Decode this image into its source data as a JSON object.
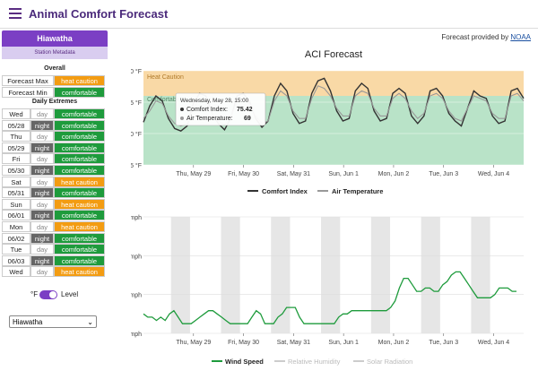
{
  "app": {
    "title": "Animal Comfort Forecast"
  },
  "provider": {
    "text": "Forecast provided by",
    "link": "NOAA"
  },
  "station": {
    "name": "Hiawatha",
    "meta": "Station Metadata"
  },
  "overall": {
    "title": "Overall",
    "rows": [
      {
        "label": "Forecast Max",
        "value": "heat caution",
        "status": "hot"
      },
      {
        "label": "Forecast Min",
        "value": "comfortable",
        "status": "ok"
      }
    ]
  },
  "daily": {
    "title": "Daily Extremes",
    "rows": [
      {
        "label": "Wed",
        "period": "day",
        "value": "comfortable",
        "status": "ok"
      },
      {
        "label": "05/28",
        "period": "night",
        "value": "comfortable",
        "status": "ok"
      },
      {
        "label": "Thu",
        "period": "day",
        "value": "comfortable",
        "status": "ok"
      },
      {
        "label": "05/29",
        "period": "night",
        "value": "comfortable",
        "status": "ok"
      },
      {
        "label": "Fri",
        "period": "day",
        "value": "comfortable",
        "status": "ok"
      },
      {
        "label": "05/30",
        "period": "night",
        "value": "comfortable",
        "status": "ok"
      },
      {
        "label": "Sat",
        "period": "day",
        "value": "heat caution",
        "status": "hot"
      },
      {
        "label": "05/31",
        "period": "night",
        "value": "comfortable",
        "status": "ok"
      },
      {
        "label": "Sun",
        "period": "day",
        "value": "heat caution",
        "status": "hot"
      },
      {
        "label": "06/01",
        "period": "night",
        "value": "comfortable",
        "status": "ok"
      },
      {
        "label": "Mon",
        "period": "day",
        "value": "heat caution",
        "status": "hot"
      },
      {
        "label": "06/02",
        "period": "night",
        "value": "comfortable",
        "status": "ok"
      },
      {
        "label": "Tue",
        "period": "day",
        "value": "comfortable",
        "status": "ok"
      },
      {
        "label": "06/03",
        "period": "night",
        "value": "comfortable",
        "status": "ok"
      },
      {
        "label": "Wed",
        "period": "day",
        "value": "heat caution",
        "status": "hot"
      }
    ]
  },
  "controls": {
    "unit": "°F",
    "level": "Level",
    "station_select": "Hiawatha"
  },
  "chart_data": [
    {
      "type": "line",
      "title": "ACI Forecast",
      "y_ticks": [
        "100 °F",
        "75 °F",
        "50 °F",
        "25 °F"
      ],
      "x_ticks": [
        "Thu, May 29",
        "Fri, May 30",
        "Sat, May 31",
        "Sun, Jun 1",
        "Mon, Jun 2",
        "Tue, Jun 3",
        "Wed, Jun 4"
      ],
      "bands": [
        {
          "name": "Heat Caution",
          "from": 80,
          "to": 100,
          "color": "#f9d9a6"
        },
        {
          "name": "Comfortable",
          "from": 25,
          "to": 80,
          "color": "#b9e3c8"
        }
      ],
      "legend": [
        "Comfort Index",
        "Air Temperature"
      ],
      "tooltip": {
        "date": "Wednesday, May 28, 15:00",
        "comfort_label": "Comfort Index:",
        "comfort_value": "75.42",
        "air_label": "Air Temperature:",
        "air_value": "69"
      },
      "series": [
        {
          "name": "Comfort Index",
          "color": "#333333",
          "values": [
            59,
            72,
            80,
            76,
            62,
            54,
            52,
            56,
            74,
            82,
            80,
            66,
            58,
            53,
            62,
            80,
            82,
            76,
            62,
            55,
            60,
            80,
            90,
            84,
            66,
            58,
            60,
            82,
            92,
            94,
            84,
            68,
            60,
            62,
            84,
            90,
            86,
            68,
            60,
            62,
            82,
            86,
            82,
            64,
            58,
            64,
            84,
            86,
            80,
            66,
            60,
            56,
            70,
            84,
            80,
            78,
            64,
            58,
            60,
            84,
            86,
            78
          ]
        },
        {
          "name": "Air Temperature",
          "color": "#999999",
          "values": [
            62,
            68,
            76,
            74,
            64,
            58,
            56,
            58,
            70,
            78,
            76,
            66,
            60,
            57,
            62,
            76,
            78,
            74,
            64,
            58,
            60,
            76,
            84,
            80,
            68,
            62,
            62,
            78,
            88,
            86,
            80,
            70,
            64,
            64,
            80,
            84,
            82,
            70,
            64,
            64,
            78,
            82,
            78,
            68,
            62,
            66,
            80,
            82,
            78,
            68,
            62,
            60,
            70,
            80,
            78,
            76,
            66,
            62,
            62,
            80,
            82,
            76
          ]
        }
      ]
    },
    {
      "type": "line",
      "y_ticks": [
        "36 mph",
        "24 mph",
        "12 mph",
        "0 mph"
      ],
      "x_ticks": [
        "Thu, May 29",
        "Fri, May 30",
        "Sat, May 31",
        "Sun, Jun 1",
        "Mon, Jun 2",
        "Tue, Jun 3",
        "Wed, Jun 4"
      ],
      "legend": [
        "Wind Speed",
        "Relative Humidity",
        "Solar Radiation"
      ],
      "series": [
        {
          "name": "Wind Speed",
          "color": "#1e9b3c",
          "values": [
            6,
            5,
            5,
            4,
            5,
            4,
            6,
            7,
            5,
            3,
            3,
            3,
            4,
            5,
            6,
            7,
            7,
            6,
            5,
            4,
            3,
            3,
            3,
            3,
            3,
            5,
            7,
            6,
            3,
            3,
            3,
            5,
            6,
            8,
            8,
            8,
            5,
            3,
            3,
            3,
            3,
            3,
            3,
            3,
            3,
            5,
            6,
            6,
            7,
            7,
            7,
            7,
            7,
            7,
            7,
            7,
            7,
            8,
            10,
            14,
            17,
            17,
            15,
            13,
            13,
            14,
            14,
            13,
            13,
            15,
            16,
            18,
            19,
            19,
            17,
            15,
            13,
            11,
            11,
            11,
            11,
            12,
            14,
            14,
            14,
            13,
            13
          ]
        }
      ]
    }
  ]
}
